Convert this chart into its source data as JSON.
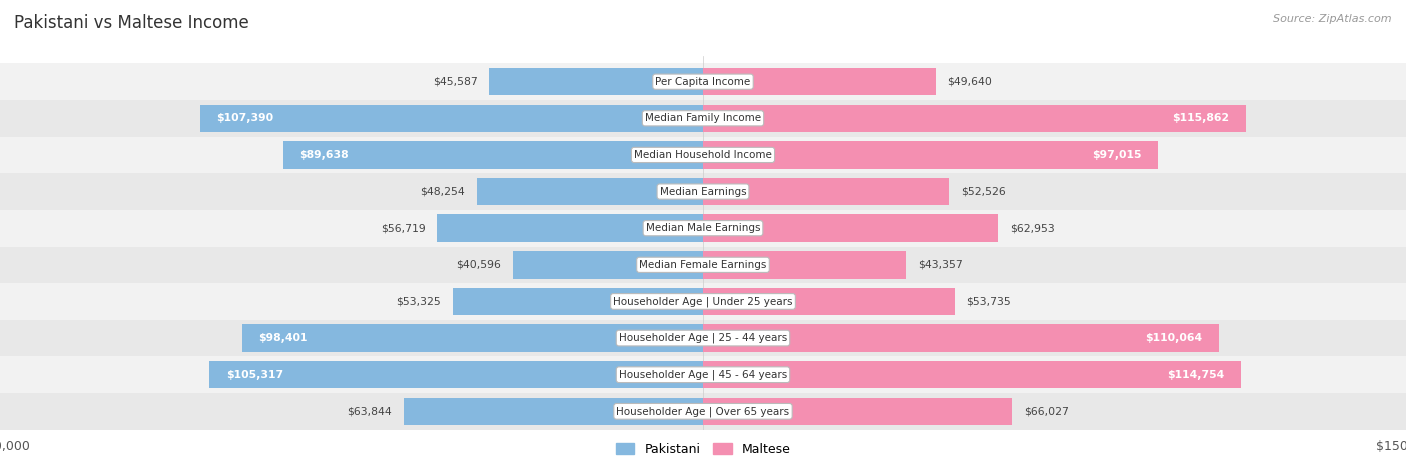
{
  "title": "Pakistani vs Maltese Income",
  "source": "Source: ZipAtlas.com",
  "categories": [
    "Per Capita Income",
    "Median Family Income",
    "Median Household Income",
    "Median Earnings",
    "Median Male Earnings",
    "Median Female Earnings",
    "Householder Age | Under 25 years",
    "Householder Age | 25 - 44 years",
    "Householder Age | 45 - 64 years",
    "Householder Age | Over 65 years"
  ],
  "pakistani_values": [
    45587,
    107390,
    89638,
    48254,
    56719,
    40596,
    53325,
    98401,
    105317,
    63844
  ],
  "maltese_values": [
    49640,
    115862,
    97015,
    52526,
    62953,
    43357,
    53735,
    110064,
    114754,
    66027
  ],
  "pakistani_labels": [
    "$45,587",
    "$107,390",
    "$89,638",
    "$48,254",
    "$56,719",
    "$40,596",
    "$53,325",
    "$98,401",
    "$105,317",
    "$63,844"
  ],
  "maltese_labels": [
    "$49,640",
    "$115,862",
    "$97,015",
    "$52,526",
    "$62,953",
    "$43,357",
    "$53,735",
    "$110,064",
    "$114,754",
    "$66,027"
  ],
  "pakistani_color": "#85b8df",
  "maltese_color": "#f48fb1",
  "max_value": 150000,
  "row_colors": [
    "#f2f2f2",
    "#e8e8e8"
  ],
  "bg_color": "#ffffff",
  "label_inside_threshold": 70000,
  "legend_labels": [
    "Pakistani",
    "Maltese"
  ]
}
